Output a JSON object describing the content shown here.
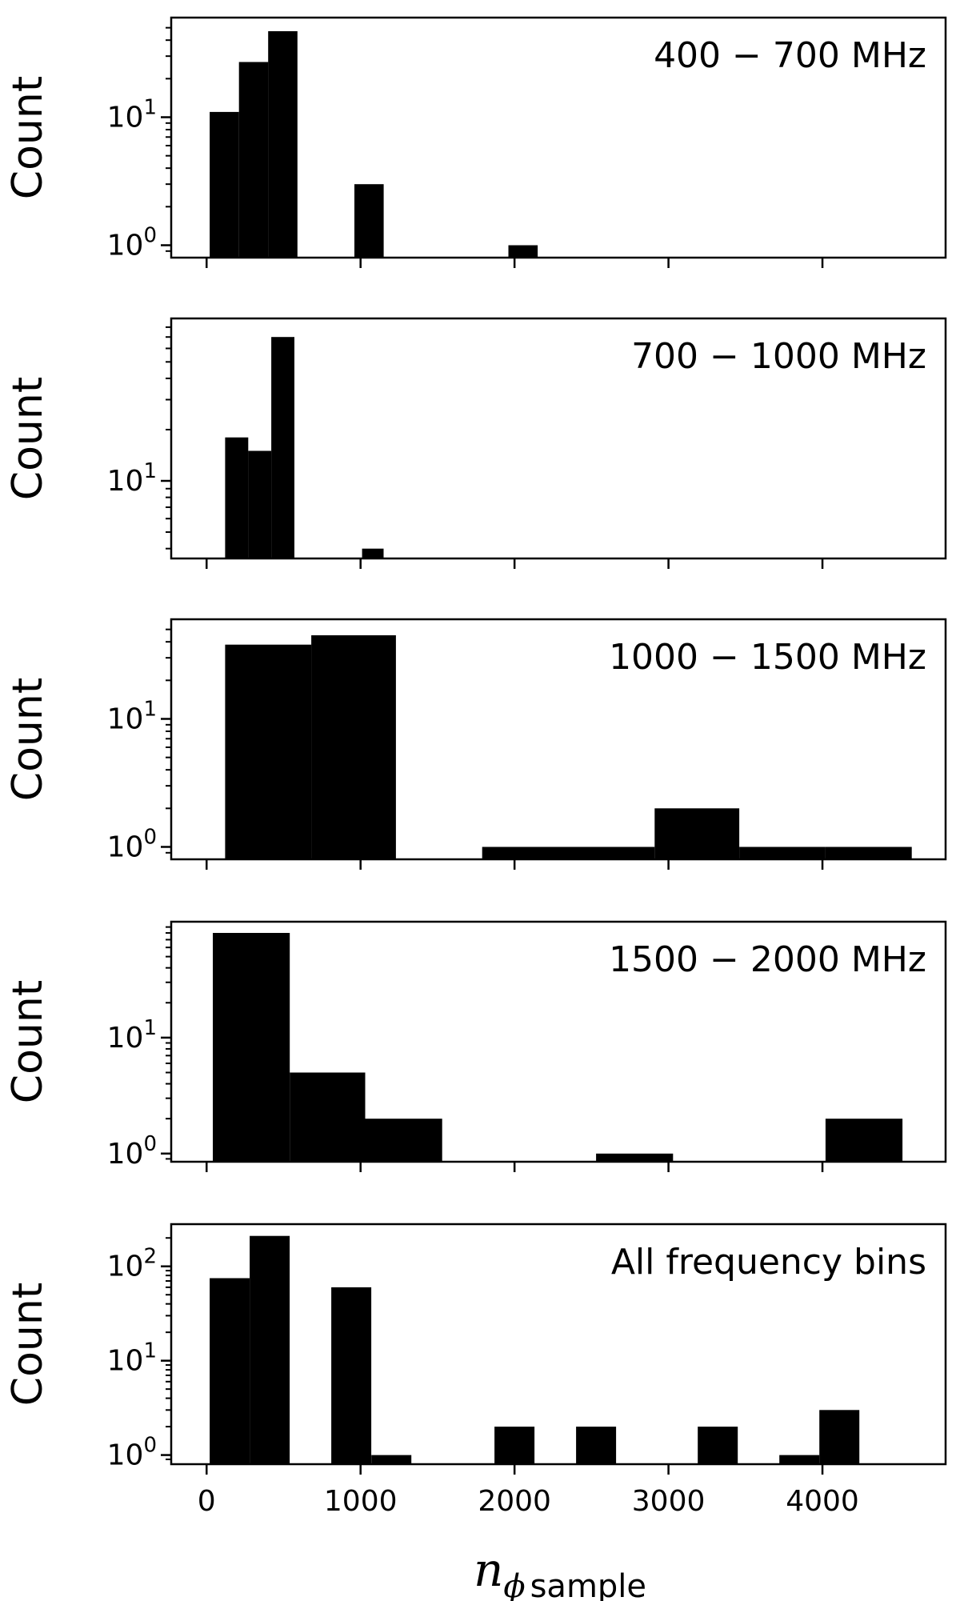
{
  "chart_data": [
    {
      "type": "bar",
      "annotation": "400 − 700 MHz",
      "ylabel": "Count",
      "yscale": "log",
      "yticks": [
        {
          "value": 1,
          "base": "10",
          "exp": "0"
        },
        {
          "value": 10,
          "base": "10",
          "exp": "1"
        }
      ],
      "show_x_tick_labels": false,
      "ylim": [
        0.8,
        60
      ],
      "bins": [
        {
          "x0": 20,
          "x1": 210,
          "count": 11
        },
        {
          "x0": 210,
          "x1": 400,
          "count": 27
        },
        {
          "x0": 400,
          "x1": 590,
          "count": 47
        },
        {
          "x0": 960,
          "x1": 1150,
          "count": 3
        },
        {
          "x0": 1960,
          "x1": 2150,
          "count": 1
        }
      ]
    },
    {
      "type": "bar",
      "annotation": "700 − 1000 MHz",
      "ylabel": "Count",
      "yscale": "log",
      "yticks": [
        {
          "value": 10,
          "base": "10",
          "exp": "1"
        }
      ],
      "show_x_tick_labels": false,
      "ylim": [
        3.5,
        90
      ],
      "bins": [
        {
          "x0": 120,
          "x1": 270,
          "count": 18
        },
        {
          "x0": 270,
          "x1": 420,
          "count": 15
        },
        {
          "x0": 420,
          "x1": 570,
          "count": 70
        },
        {
          "x0": 1010,
          "x1": 1150,
          "count": 4
        }
      ]
    },
    {
      "type": "bar",
      "annotation": "1000 − 1500 MHz",
      "ylabel": "Count",
      "yscale": "log",
      "yticks": [
        {
          "value": 1,
          "base": "10",
          "exp": "0"
        },
        {
          "value": 10,
          "base": "10",
          "exp": "1"
        }
      ],
      "show_x_tick_labels": false,
      "ylim": [
        0.8,
        60
      ],
      "bins": [
        {
          "x0": 120,
          "x1": 680,
          "count": 38
        },
        {
          "x0": 680,
          "x1": 1230,
          "count": 45
        },
        {
          "x0": 1790,
          "x1": 2350,
          "count": 1
        },
        {
          "x0": 2350,
          "x1": 2910,
          "count": 1
        },
        {
          "x0": 2910,
          "x1": 3460,
          "count": 2
        },
        {
          "x0": 3460,
          "x1": 4020,
          "count": 1
        },
        {
          "x0": 4020,
          "x1": 4580,
          "count": 1
        }
      ]
    },
    {
      "type": "bar",
      "annotation": "1500 − 2000 MHz",
      "ylabel": "Count",
      "yscale": "log",
      "yticks": [
        {
          "value": 1,
          "base": "10",
          "exp": "0"
        },
        {
          "value": 10,
          "base": "10",
          "exp": "1"
        }
      ],
      "show_x_tick_labels": false,
      "ylim": [
        0.85,
        100
      ],
      "bins": [
        {
          "x0": 40,
          "x1": 540,
          "count": 80
        },
        {
          "x0": 540,
          "x1": 1030,
          "count": 5
        },
        {
          "x0": 1030,
          "x1": 1530,
          "count": 2
        },
        {
          "x0": 2530,
          "x1": 3030,
          "count": 1
        },
        {
          "x0": 4020,
          "x1": 4520,
          "count": 2
        }
      ]
    },
    {
      "type": "bar",
      "annotation": "All frequency bins",
      "ylabel": "Count",
      "yscale": "log",
      "yticks": [
        {
          "value": 1,
          "base": "10",
          "exp": "0"
        },
        {
          "value": 10,
          "base": "10",
          "exp": "1"
        },
        {
          "value": 100,
          "base": "10",
          "exp": "2"
        }
      ],
      "show_x_tick_labels": true,
      "ylim": [
        0.8,
        280
      ],
      "bins": [
        {
          "x0": 20,
          "x1": 280,
          "count": 75
        },
        {
          "x0": 280,
          "x1": 540,
          "count": 210
        },
        {
          "x0": 810,
          "x1": 1070,
          "count": 60
        },
        {
          "x0": 1070,
          "x1": 1330,
          "count": 1
        },
        {
          "x0": 1870,
          "x1": 2130,
          "count": 2
        },
        {
          "x0": 2400,
          "x1": 2660,
          "count": 2
        },
        {
          "x0": 3190,
          "x1": 3450,
          "count": 2
        },
        {
          "x0": 3720,
          "x1": 3980,
          "count": 1
        },
        {
          "x0": 3980,
          "x1": 4240,
          "count": 3
        }
      ]
    }
  ],
  "x_axis": {
    "xlim": [
      -230,
      4800
    ],
    "ticks": [
      0,
      1000,
      2000,
      3000,
      4000
    ],
    "tick_labels": [
      "0",
      "1000",
      "2000",
      "3000",
      "4000"
    ],
    "label_main": "n",
    "label_sub_symbol": "ϕ",
    "label_sub_text": "sample"
  }
}
